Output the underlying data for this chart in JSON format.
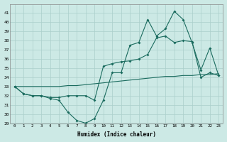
{
  "xlabel": "Humidex (Indice chaleur)",
  "ylabel": "",
  "background_color": "#cce9e5",
  "grid_color": "#aacfcb",
  "line_color": "#1a6b5e",
  "ylim": [
    29,
    42
  ],
  "xlim": [
    -0.5,
    23.5
  ],
  "yticks": [
    29,
    30,
    31,
    32,
    33,
    34,
    35,
    36,
    37,
    38,
    39,
    40,
    41
  ],
  "xticks": [
    0,
    1,
    2,
    3,
    4,
    5,
    6,
    7,
    8,
    9,
    10,
    11,
    12,
    13,
    14,
    15,
    16,
    17,
    18,
    19,
    20,
    21,
    22,
    23
  ],
  "series1": [
    33,
    32.2,
    32,
    32,
    31.7,
    31.5,
    30.2,
    29.3,
    29.0,
    29.5,
    31.5,
    34.5,
    34.5,
    37.5,
    37.8,
    40.3,
    38.5,
    39.3,
    41.2,
    40.3,
    37.8,
    34.8,
    37.2,
    34.2
  ],
  "series2": [
    33,
    32.2,
    32,
    32,
    31.8,
    31.8,
    32.0,
    32.0,
    32.0,
    31.5,
    35.2,
    35.5,
    35.7,
    35.8,
    36.0,
    36.5,
    38.3,
    38.5,
    37.8,
    38.0,
    37.9,
    34.0,
    34.5,
    34.2
  ],
  "series3": [
    33.0,
    33.0,
    33.0,
    33.0,
    33.0,
    33.0,
    33.1,
    33.1,
    33.2,
    33.3,
    33.4,
    33.5,
    33.6,
    33.7,
    33.8,
    33.9,
    34.0,
    34.1,
    34.1,
    34.2,
    34.2,
    34.3,
    34.3,
    34.4
  ]
}
